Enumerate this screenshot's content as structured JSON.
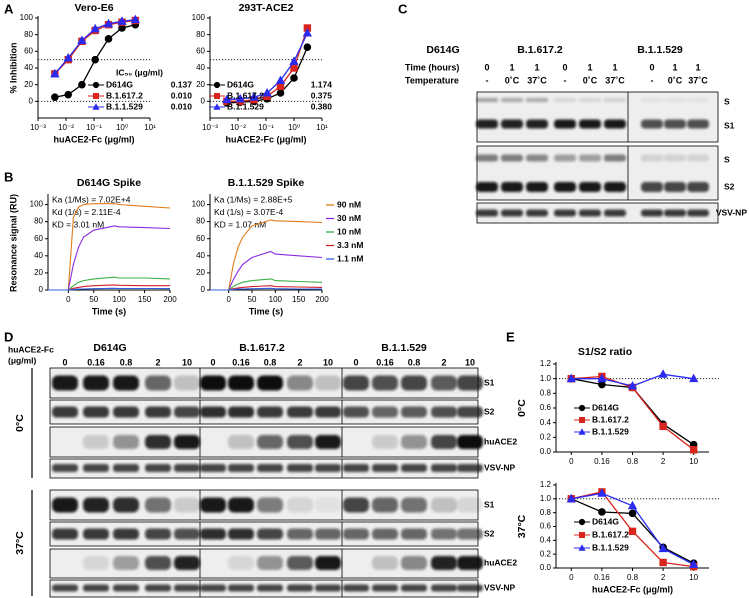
{
  "panel_labels": [
    "A",
    "B",
    "C",
    "D",
    "E"
  ],
  "chart_data": [
    {
      "type": "line",
      "title": "Vero-E6",
      "x_label": "huACE2-Fc (μg/ml)",
      "y_label": "% Inhibition",
      "log_x": true,
      "x": [
        0.004,
        0.012,
        0.037,
        0.11,
        0.33,
        1,
        3
      ],
      "xlim": [
        0.001,
        10
      ],
      "xticks": [
        {
          "value": 0.001,
          "label": "10⁻³"
        },
        {
          "value": 0.01,
          "label": "10⁻²"
        },
        {
          "value": 0.1,
          "label": "10⁻¹"
        },
        {
          "value": 1,
          "label": "10⁰"
        },
        {
          "value": 10,
          "label": "10¹"
        }
      ],
      "ylim": [
        -20,
        100
      ],
      "yticks": [
        0,
        20,
        40,
        60,
        80,
        100
      ],
      "reference_lines": [
        0,
        50
      ],
      "legend_title": "IC₅₀ (μg/ml)",
      "series": [
        {
          "name": "D614G",
          "color": "#000000",
          "marker": "circle",
          "values": [
            5,
            8,
            20,
            50,
            75,
            88,
            92
          ],
          "ic50": "0.137"
        },
        {
          "name": "B.1.617.2",
          "color": "#d9251d",
          "marker": "square",
          "values": [
            33,
            50,
            72,
            85,
            92,
            95,
            97
          ],
          "ic50": "0.010"
        },
        {
          "name": "B.1.1.529",
          "color": "#2b2bf0",
          "marker": "triangle",
          "values": [
            33,
            52,
            73,
            87,
            93,
            96,
            98
          ],
          "ic50": "0.010"
        }
      ]
    },
    {
      "type": "line",
      "title": "293T-ACE2",
      "x_label": "huACE2-Fc (μg/ml)",
      "log_x": true,
      "x": [
        0.004,
        0.012,
        0.037,
        0.11,
        0.33,
        1,
        3
      ],
      "xlim": [
        0.001,
        10
      ],
      "xticks": [
        {
          "value": 0.001,
          "label": "10⁻³"
        },
        {
          "value": 0.01,
          "label": "10⁻²"
        },
        {
          "value": 0.1,
          "label": "10⁻¹"
        },
        {
          "value": 1,
          "label": "10⁰"
        },
        {
          "value": 10,
          "label": "10¹"
        }
      ],
      "ylim": [
        -20,
        100
      ],
      "yticks": [
        0,
        20,
        40,
        60,
        80,
        100
      ],
      "reference_lines": [
        0,
        50
      ],
      "series": [
        {
          "name": "D614G",
          "color": "#000000",
          "marker": "circle",
          "values": [
            -2,
            -1,
            0,
            3,
            10,
            28,
            65
          ],
          "ic50": "1.174"
        },
        {
          "name": "B.1.617.2",
          "color": "#d9251d",
          "marker": "square",
          "values": [
            0,
            0,
            2,
            6,
            18,
            40,
            88
          ],
          "ic50": "0.375"
        },
        {
          "name": "B.1.1.529",
          "color": "#2b2bf0",
          "marker": "triangle",
          "values": [
            2,
            3,
            5,
            10,
            25,
            48,
            82
          ],
          "ic50": "0.380"
        }
      ]
    },
    {
      "type": "line",
      "title": "D614G Spike",
      "x_label": "Time (s)",
      "y_label": "Resonance signal (RU)",
      "annotations": [
        "Ka (1/Ms) = 7.02E+4",
        "Kd (1/s) = 2.11E-4",
        "KD = 3.01 nM"
      ],
      "x": [
        -40,
        0,
        10,
        20,
        30,
        50,
        90,
        100,
        150,
        200
      ],
      "xlim": [
        -40,
        200
      ],
      "xticks": [
        0,
        50,
        100,
        150,
        200
      ],
      "ylim": [
        0,
        110
      ],
      "yticks": [
        0,
        20,
        40,
        60,
        80,
        100
      ],
      "series": [
        {
          "color": "#e07b1a",
          "values": [
            0,
            0,
            85,
            97,
            100,
            101,
            101,
            100,
            98,
            96
          ]
        },
        {
          "color": "#8a2be2",
          "values": [
            0,
            0,
            30,
            50,
            62,
            70,
            75,
            74,
            73,
            72
          ]
        },
        {
          "color": "#3cb043",
          "values": [
            0,
            0,
            5,
            9,
            11,
            13,
            15,
            14,
            14,
            13
          ]
        },
        {
          "color": "#d0202a",
          "values": [
            0,
            0,
            2,
            3,
            4,
            5,
            6,
            5.5,
            5,
            5
          ]
        },
        {
          "color": "#3060e0",
          "values": [
            0,
            0,
            0.5,
            1,
            1.2,
            1.5,
            2,
            1.8,
            1.7,
            1.6
          ]
        }
      ]
    },
    {
      "type": "line",
      "title": "B.1.1.529 Spike",
      "x_label": "Time (s)",
      "annotations": [
        "Ka (1/Ms) = 2.88E+5",
        "Kd (1/s) = 3.07E-4",
        "KD = 1.07 nM"
      ],
      "x": [
        -40,
        0,
        10,
        20,
        30,
        50,
        90,
        100,
        150,
        200
      ],
      "xlim": [
        -40,
        200
      ],
      "xticks": [
        0,
        50,
        100,
        150,
        200
      ],
      "ylim": [
        0,
        110
      ],
      "yticks": [
        0,
        20,
        40,
        60,
        80,
        100
      ],
      "series": [
        {
          "name": "90 nM",
          "color": "#e07b1a",
          "values": [
            0,
            0,
            30,
            50,
            62,
            75,
            82,
            81,
            80,
            79
          ]
        },
        {
          "name": "30 nM",
          "color": "#8a2be2",
          "values": [
            0,
            0,
            12,
            22,
            30,
            38,
            45,
            42,
            40,
            38
          ]
        },
        {
          "name": "10 nM",
          "color": "#3cb043",
          "values": [
            0,
            0,
            4,
            7,
            9,
            11,
            13,
            11,
            10,
            9
          ]
        },
        {
          "name": "3.3 nM",
          "color": "#d0202a",
          "values": [
            0,
            0,
            1.5,
            2.5,
            3,
            4,
            5,
            4,
            3.5,
            3
          ]
        },
        {
          "name": "1.1 nM",
          "color": "#3060e0",
          "values": [
            0,
            0,
            0.5,
            1,
            1,
            1.5,
            2,
            1.5,
            1.2,
            1
          ]
        }
      ]
    },
    {
      "type": "line",
      "title": "S1/S2 ratio",
      "y_label": "0°C",
      "categories": [
        "0",
        "0.16",
        "0.8",
        "2",
        "10"
      ],
      "ylim": [
        0,
        1.2
      ],
      "yticks": [
        {
          "value": 0,
          "label": "0.0"
        },
        {
          "value": 0.2,
          "label": "0.2"
        },
        {
          "value": 0.4,
          "label": "0.4"
        },
        {
          "value": 0.6,
          "label": "0.6"
        },
        {
          "value": 0.8,
          "label": "0.8"
        },
        {
          "value": 1,
          "label": "1.0"
        },
        {
          "value": 1.2,
          "label": "1.2"
        }
      ],
      "reference_lines": [
        1
      ],
      "series": [
        {
          "name": "D614G",
          "color": "#000000",
          "marker": "circle",
          "values": [
            1,
            0.92,
            0.88,
            0.38,
            0.1
          ]
        },
        {
          "name": "B.1.617.2",
          "color": "#d9251d",
          "marker": "square",
          "values": [
            1,
            1.03,
            0.88,
            0.35,
            0.03
          ]
        },
        {
          "name": "B.1.1.529",
          "color": "#2b2bf0",
          "marker": "triangle",
          "values": [
            1,
            1.0,
            0.9,
            1.06,
            1.0
          ]
        }
      ]
    },
    {
      "type": "line",
      "y_label": "37°C",
      "x_label": "huACE2-Fc (μg/ml)",
      "categories": [
        "0",
        "0.16",
        "0.8",
        "2",
        "10"
      ],
      "ylim": [
        0,
        1.2
      ],
      "yticks": [
        {
          "value": 0,
          "label": "0.0"
        },
        {
          "value": 0.2,
          "label": "0.2"
        },
        {
          "value": 0.4,
          "label": "0.4"
        },
        {
          "value": 0.6,
          "label": "0.6"
        },
        {
          "value": 0.8,
          "label": "0.8"
        },
        {
          "value": 1,
          "label": "1.0"
        },
        {
          "value": 1.2,
          "label": "1.2"
        }
      ],
      "reference_lines": [
        1
      ],
      "series": [
        {
          "name": "D614G",
          "color": "#000000",
          "marker": "circle",
          "values": [
            1,
            0.81,
            0.79,
            0.3,
            0.07
          ]
        },
        {
          "name": "B.1.617.2",
          "color": "#d9251d",
          "marker": "square",
          "values": [
            1,
            1.1,
            0.53,
            0.08,
            0.02
          ]
        },
        {
          "name": "B.1.1.529",
          "color": "#2b2bf0",
          "marker": "triangle",
          "values": [
            1,
            1.08,
            0.9,
            0.28,
            0.05
          ]
        }
      ]
    }
  ],
  "blot_c": {
    "groups": [
      "D614G",
      "B.1.617.2",
      "B.1.1.529"
    ],
    "row_labels": [
      "Time (hours)",
      "Temperature"
    ],
    "time": [
      "0",
      "1",
      "1",
      "0",
      "1",
      "1",
      "0",
      "1",
      "1"
    ],
    "temperature": [
      "-",
      "0˚C",
      "37˚C",
      "-",
      "0˚C",
      "37˚C",
      "-",
      "0˚C",
      "37˚C"
    ],
    "band_labels": [
      "S",
      "S1",
      "S",
      "S2",
      "VSV-NP"
    ]
  },
  "blot_d": {
    "header": [
      "huACE2-Fc",
      "(μg/ml)"
    ],
    "groups": [
      "D614G",
      "B.1.617.2",
      "B.1.1.529"
    ],
    "doses": [
      "0",
      "0.16",
      "0.8",
      "2",
      "10"
    ],
    "conditions": [
      "0°C",
      "37°C"
    ],
    "band_labels": [
      "S1",
      "S2",
      "huACE2",
      "VSV-NP"
    ]
  }
}
